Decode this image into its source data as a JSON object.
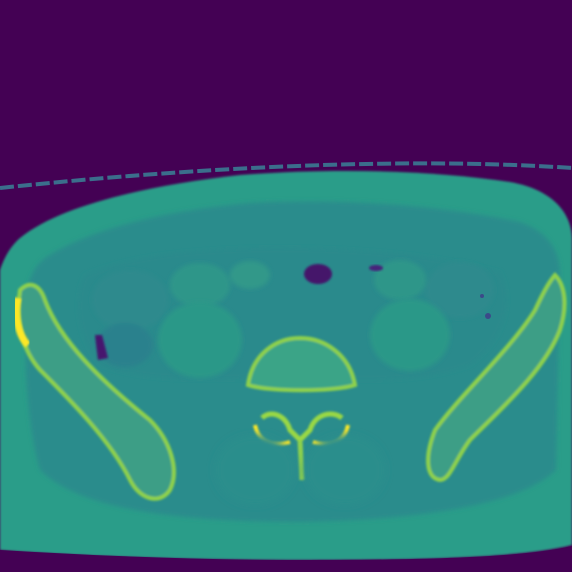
{
  "image": {
    "kind": "axial CT slice of the pelvis, viridis colormap",
    "colormap": "viridis",
    "palette": {
      "background": "#440154",
      "table_line": "#3e6f8d",
      "soft_tissue": "#2a8f8b",
      "muscle": "#2b9a8a",
      "fat_dark": "#2a6f8c",
      "air": "#45136b",
      "bone_cortex": "#8fd14b",
      "bone_bright": "#fde725",
      "trabecular": "#3c9e86"
    }
  }
}
